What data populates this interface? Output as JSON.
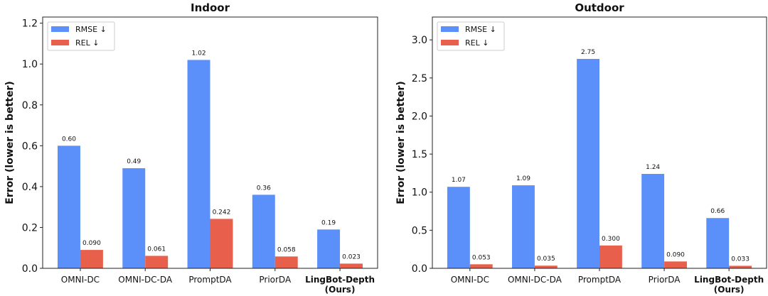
{
  "chart_data": [
    {
      "type": "bar",
      "title": "Indoor",
      "xlabel": "",
      "ylabel": "Error (lower is better)",
      "categories": [
        "OMNI-DC",
        "OMNI-DC-DA",
        "PromptDA",
        "PriorDA",
        "LingBot-Depth\n(Ours)"
      ],
      "bold_categories": [
        4
      ],
      "ylim": [
        0,
        1.23
      ],
      "yticks": [
        0.0,
        0.2,
        0.4,
        0.6,
        0.8,
        1.0,
        1.2
      ],
      "ytick_labels": [
        "0.0",
        "0.2",
        "0.4",
        "0.6",
        "0.8",
        "1.0",
        "1.2"
      ],
      "grid": false,
      "legend_position": "top-left",
      "series": [
        {
          "name": "RMSE ↓",
          "color": "#5B8FF9",
          "values": [
            0.6,
            0.49,
            1.02,
            0.36,
            0.19
          ],
          "labels": [
            "0.60",
            "0.49",
            "1.02",
            "0.36",
            "0.19"
          ]
        },
        {
          "name": "REL ↓",
          "color": "#E8604C",
          "values": [
            0.09,
            0.061,
            0.242,
            0.058,
            0.023
          ],
          "labels": [
            "0.090",
            "0.061",
            "0.242",
            "0.058",
            "0.023"
          ]
        }
      ]
    },
    {
      "type": "bar",
      "title": "Outdoor",
      "xlabel": "",
      "ylabel": "Error (lower is better)",
      "categories": [
        "OMNI-DC",
        "OMNI-DC-DA",
        "PromptDA",
        "PriorDA",
        "LingBot-Depth\n(Ours)"
      ],
      "bold_categories": [
        4
      ],
      "ylim": [
        0,
        3.3
      ],
      "yticks": [
        0.0,
        0.5,
        1.0,
        1.5,
        2.0,
        2.5,
        3.0
      ],
      "ytick_labels": [
        "0.0",
        "0.5",
        "1.0",
        "1.5",
        "2.0",
        "2.5",
        "3.0"
      ],
      "grid": false,
      "legend_position": "top-left",
      "series": [
        {
          "name": "RMSE ↓",
          "color": "#5B8FF9",
          "values": [
            1.07,
            1.09,
            2.75,
            1.24,
            0.66
          ],
          "labels": [
            "1.07",
            "1.09",
            "2.75",
            "1.24",
            "0.66"
          ]
        },
        {
          "name": "REL ↓",
          "color": "#E8604C",
          "values": [
            0.053,
            0.035,
            0.3,
            0.09,
            0.033
          ],
          "labels": [
            "0.053",
            "0.035",
            "0.300",
            "0.090",
            "0.033"
          ]
        }
      ]
    }
  ]
}
